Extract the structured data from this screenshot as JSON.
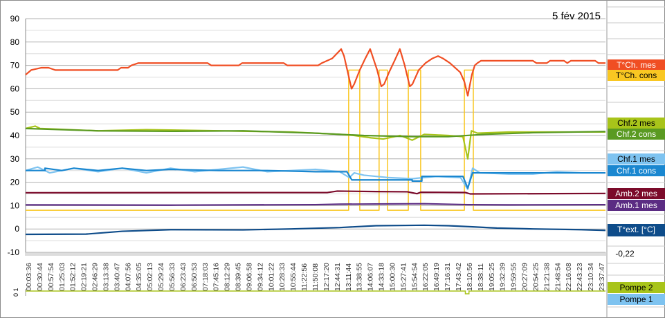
{
  "chart_data": {
    "type": "line",
    "title": "5 fév 2015",
    "xlabel": "",
    "ylabel": "",
    "ylim": [
      -10,
      90
    ],
    "xlim_hours": [
      0,
      24
    ],
    "yticks": [
      "90",
      "80",
      "70",
      "60",
      "50",
      "40",
      "30",
      "20",
      "10",
      "0",
      "-10"
    ],
    "grid": true,
    "legend_placement": "right",
    "x_tick_labels": [
      "00:03:36",
      "00:30:44",
      "00:57:54",
      "01:25:03",
      "01:52:12",
      "02:19:21",
      "02:46:29",
      "03:13:38",
      "03:40:47",
      "04:07:56",
      "04:35:05",
      "05:02:13",
      "05:29:24",
      "05:56:33",
      "06:23:43",
      "06:50:53",
      "07:18:03",
      "07:45:16",
      "08:12:29",
      "08:39:45",
      "09:06:58",
      "09:34:12",
      "10:01:22",
      "10:28:33",
      "10:55:44",
      "11:22:56",
      "11:50:08",
      "12:17:20",
      "12:44:31",
      "13:11:44",
      "13:38:55",
      "14:06:07",
      "14:33:18",
      "15:00:30",
      "15:27:41",
      "15:54:54",
      "16:22:05",
      "16:49:19",
      "17:16:31",
      "17:43:42",
      "18:10:56",
      "18:38:11",
      "19:05:25",
      "19:32:39",
      "19:59:55",
      "20:27:09",
      "20:54:25",
      "21:21:38",
      "21:48:54",
      "22:16:08",
      "22:43:23",
      "23:10:34",
      "23:37:47"
    ],
    "series": [
      {
        "name": "T°Ch. cons",
        "color": "#f9c722",
        "text_color": "#000",
        "points": [
          [
            0,
            8
          ],
          [
            13.37,
            8
          ],
          [
            13.37,
            68
          ],
          [
            13.83,
            68
          ],
          [
            13.83,
            8
          ],
          [
            14.63,
            8
          ],
          [
            14.63,
            68
          ],
          [
            14.98,
            68
          ],
          [
            14.98,
            8
          ],
          [
            15.84,
            8
          ],
          [
            15.84,
            68
          ],
          [
            16.35,
            68
          ],
          [
            16.35,
            8
          ],
          [
            18.16,
            8
          ],
          [
            18.16,
            68
          ],
          [
            18.53,
            68
          ],
          [
            18.53,
            8
          ],
          [
            24,
            8
          ]
        ]
      },
      {
        "name": "Amb.1 mes",
        "color": "#5b2c83",
        "text_color": "#fff",
        "points": [
          [
            0,
            10.3
          ],
          [
            6,
            10.2
          ],
          [
            12,
            10.4
          ],
          [
            13,
            10.6
          ],
          [
            15,
            10.7
          ],
          [
            16.5,
            10.8
          ],
          [
            18.3,
            10.4
          ],
          [
            20,
            10.3
          ],
          [
            24,
            10.4
          ]
        ]
      },
      {
        "name": "Amb.2 mes",
        "color": "#7b0a2a",
        "text_color": "#fff",
        "points": [
          [
            0,
            15.5
          ],
          [
            12.5,
            15.6
          ],
          [
            12.9,
            16.2
          ],
          [
            14.5,
            16
          ],
          [
            15.8,
            15.9
          ],
          [
            16.2,
            15.1
          ],
          [
            16.35,
            15.7
          ],
          [
            18.2,
            15.6
          ],
          [
            18.4,
            15
          ],
          [
            24,
            15.2
          ]
        ]
      },
      {
        "name": "T°ext. [°C]",
        "color": "#0e4c8a",
        "text_color": "#fff",
        "points": [
          [
            0,
            -2.3
          ],
          [
            2.5,
            -2.2
          ],
          [
            4,
            -1
          ],
          [
            6,
            -0.3
          ],
          [
            9,
            -0.4
          ],
          [
            11,
            0
          ],
          [
            13,
            0.6
          ],
          [
            14.5,
            1.4
          ],
          [
            16.5,
            1.6
          ],
          [
            17.5,
            1.4
          ],
          [
            18.5,
            0.9
          ],
          [
            19.5,
            0.4
          ],
          [
            21,
            0
          ],
          [
            23,
            -0.3
          ],
          [
            24,
            -0.6
          ]
        ]
      },
      {
        "name": "Chf.1 mes",
        "color": "#7ec3f0",
        "text_color": "#000",
        "points": [
          [
            0,
            25
          ],
          [
            0.5,
            26.5
          ],
          [
            1,
            24
          ],
          [
            2,
            26
          ],
          [
            3,
            24.5
          ],
          [
            4,
            26
          ],
          [
            5,
            24
          ],
          [
            6,
            26
          ],
          [
            7,
            24.5
          ],
          [
            8,
            25.5
          ],
          [
            9,
            26.5
          ],
          [
            10,
            24.5
          ],
          [
            11,
            25
          ],
          [
            12,
            25.5
          ],
          [
            13,
            24.5
          ],
          [
            13.4,
            22
          ],
          [
            13.6,
            24
          ],
          [
            14,
            23
          ],
          [
            15,
            22
          ],
          [
            16,
            21.5
          ],
          [
            17,
            22.5
          ],
          [
            18,
            22
          ],
          [
            18.3,
            17
          ],
          [
            18.5,
            26
          ],
          [
            18.8,
            24
          ],
          [
            20,
            23.5
          ],
          [
            21,
            23.5
          ],
          [
            22,
            24.5
          ],
          [
            23,
            24
          ],
          [
            24,
            24
          ]
        ]
      },
      {
        "name": "Chf.1 cons",
        "color": "#1a87d0",
        "text_color": "#fff",
        "points": [
          [
            0,
            25
          ],
          [
            0.8,
            25
          ],
          [
            0.8,
            26
          ],
          [
            1.5,
            25
          ],
          [
            2,
            26
          ],
          [
            3,
            25
          ],
          [
            4,
            26
          ],
          [
            5,
            25
          ],
          [
            6,
            25.5
          ],
          [
            8,
            25
          ],
          [
            10,
            25
          ],
          [
            12,
            24.5
          ],
          [
            13.3,
            24.5
          ],
          [
            13.5,
            21
          ],
          [
            16,
            21
          ],
          [
            16,
            20.5
          ],
          [
            16.4,
            20.5
          ],
          [
            16.4,
            22.5
          ],
          [
            18.1,
            22.5
          ],
          [
            18.3,
            17.5
          ],
          [
            18.5,
            24
          ],
          [
            24,
            24
          ]
        ]
      },
      {
        "name": "Chf.2 mes",
        "color": "#a8c41a",
        "text_color": "#000",
        "points": [
          [
            0,
            43
          ],
          [
            0.4,
            44
          ],
          [
            0.6,
            43
          ],
          [
            3,
            42
          ],
          [
            5,
            42.5
          ],
          [
            8,
            42
          ],
          [
            11,
            41.5
          ],
          [
            13,
            40.5
          ],
          [
            13.6,
            40
          ],
          [
            14.3,
            39
          ],
          [
            14.8,
            38.5
          ],
          [
            15.5,
            40
          ],
          [
            16,
            38
          ],
          [
            16.5,
            40.5
          ],
          [
            17.5,
            40
          ],
          [
            18.1,
            39.5
          ],
          [
            18.3,
            30
          ],
          [
            18.45,
            42
          ],
          [
            18.7,
            41
          ],
          [
            20,
            41.5
          ],
          [
            24,
            41.5
          ]
        ]
      },
      {
        "name": "Chf.2 cons",
        "color": "#5a9a22",
        "text_color": "#fff",
        "points": [
          [
            0,
            43
          ],
          [
            3,
            42
          ],
          [
            6,
            41.8
          ],
          [
            9,
            42
          ],
          [
            12,
            41
          ],
          [
            14,
            40
          ],
          [
            16,
            39.5
          ],
          [
            17.5,
            39.5
          ],
          [
            19,
            40.5
          ],
          [
            21,
            41.2
          ],
          [
            24,
            41.7
          ]
        ]
      },
      {
        "name": "T°Ch. mes",
        "color": "#f04e23",
        "text_color": "#fff",
        "points": [
          [
            0,
            66
          ],
          [
            0.23,
            68
          ],
          [
            0.66,
            69
          ],
          [
            0.95,
            69
          ],
          [
            1.23,
            68
          ],
          [
            3.81,
            68
          ],
          [
            3.95,
            69
          ],
          [
            4.24,
            69
          ],
          [
            4.38,
            70
          ],
          [
            4.67,
            71
          ],
          [
            7.53,
            71
          ],
          [
            7.68,
            70
          ],
          [
            8.82,
            70
          ],
          [
            8.96,
            71
          ],
          [
            10.68,
            71
          ],
          [
            10.83,
            70
          ],
          [
            12.11,
            70
          ],
          [
            12.26,
            71
          ],
          [
            12.69,
            73
          ],
          [
            12.97,
            76
          ],
          [
            13.06,
            77
          ],
          [
            13.18,
            74
          ],
          [
            13.49,
            60
          ],
          [
            13.6,
            62
          ],
          [
            13.83,
            68
          ],
          [
            14.06,
            73
          ],
          [
            14.26,
            77
          ],
          [
            14.55,
            68
          ],
          [
            14.72,
            61
          ],
          [
            14.84,
            62
          ],
          [
            15.04,
            67
          ],
          [
            15.27,
            72
          ],
          [
            15.49,
            77
          ],
          [
            15.69,
            70
          ],
          [
            15.9,
            61
          ],
          [
            16.01,
            62
          ],
          [
            16.27,
            68
          ],
          [
            16.55,
            71
          ],
          [
            16.84,
            73
          ],
          [
            17.07,
            74
          ],
          [
            17.27,
            73
          ],
          [
            17.56,
            71
          ],
          [
            17.99,
            67
          ],
          [
            18.16,
            63
          ],
          [
            18.3,
            57
          ],
          [
            18.47,
            66
          ],
          [
            18.59,
            70
          ],
          [
            18.7,
            71
          ],
          [
            18.85,
            72
          ],
          [
            20.99,
            72
          ],
          [
            21.14,
            71
          ],
          [
            21.57,
            71
          ],
          [
            21.71,
            72
          ],
          [
            22.28,
            72
          ],
          [
            22.42,
            71
          ],
          [
            22.57,
            72
          ],
          [
            23.57,
            72
          ],
          [
            23.71,
            71
          ],
          [
            24,
            71
          ]
        ]
      }
    ],
    "legend_order": [
      "T°Ch. mes",
      "T°Ch. cons",
      "Chf.2 mes",
      "Chf.2 cons",
      "Chf.1 mes",
      "Chf.1 cons",
      "Amb.2 mes",
      "Amb.1 mes",
      "T°ext. [°C]"
    ],
    "current_value": "-0,22",
    "pump_chart": {
      "yticks": [
        "0",
        "1"
      ],
      "series": [
        {
          "name": "Pompe 2",
          "color": "#a8c41a",
          "text_color": "#000",
          "points": [
            [
              0,
              1
            ],
            [
              18.2,
              1
            ],
            [
              18.2,
              0
            ],
            [
              18.35,
              0
            ],
            [
              18.35,
              1
            ],
            [
              24,
              1
            ]
          ]
        },
        {
          "name": "Pompe 1",
          "color": "#7ec3f0",
          "text_color": "#000",
          "points": []
        }
      ]
    }
  }
}
